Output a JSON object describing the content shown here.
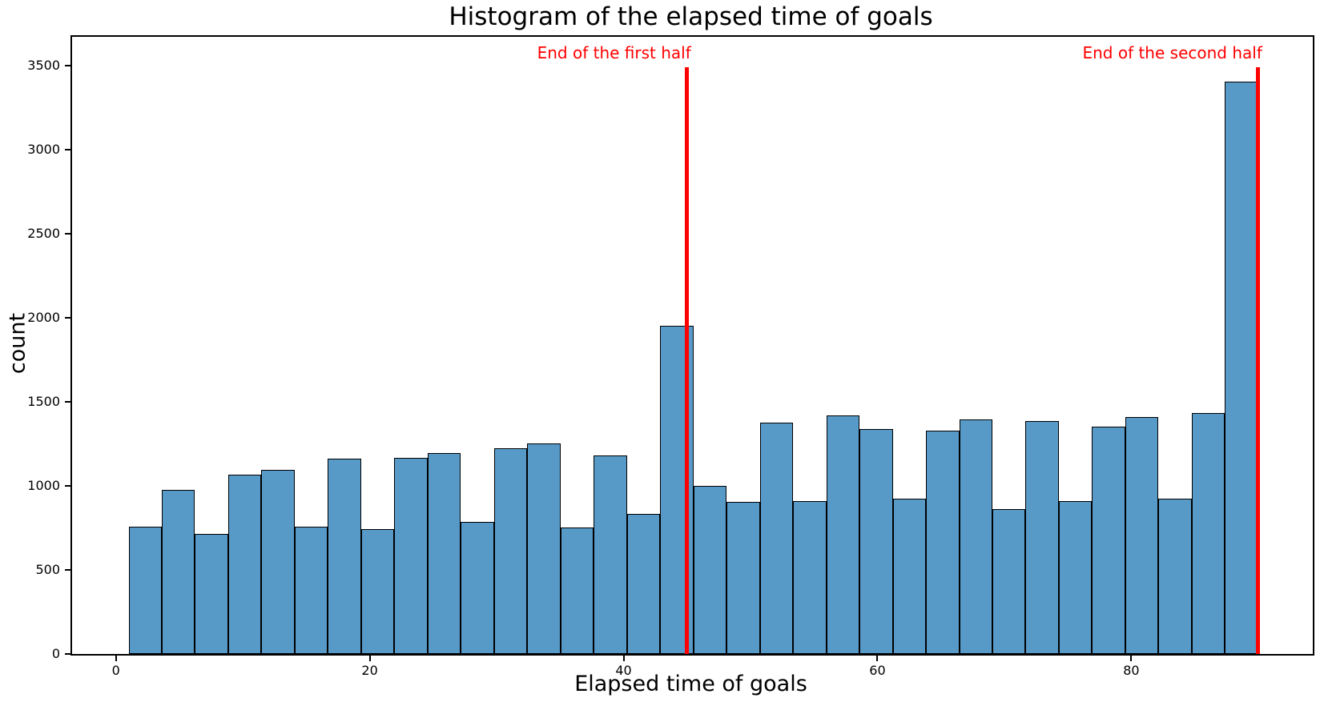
{
  "chart_data": {
    "type": "bar",
    "subtype": "histogram",
    "title": "Histogram of the elapsed time of goals",
    "xlabel": "Elapsed time of goals",
    "ylabel": "count",
    "bins": {
      "start": 1,
      "width": 2.6176,
      "count": 34
    },
    "values": [
      755,
      975,
      715,
      1065,
      1095,
      755,
      1160,
      745,
      1165,
      1195,
      785,
      1225,
      1250,
      750,
      1180,
      835,
      1950,
      1000,
      905,
      1375,
      910,
      1420,
      1340,
      925,
      1330,
      1395,
      860,
      1385,
      910,
      1350,
      1410,
      925,
      1435,
      3405
    ],
    "xlim": [
      -3.45,
      94.3
    ],
    "ylim": [
      0,
      3671
    ],
    "x_ticks": [
      0,
      20,
      40,
      60,
      80
    ],
    "y_ticks": [
      0,
      500,
      1000,
      1500,
      2000,
      2500,
      3000,
      3500
    ],
    "grid": false,
    "legend": null,
    "vlines": [
      {
        "x": 45,
        "label": "End of the first half",
        "color": "#ff0000"
      },
      {
        "x": 90,
        "label": "End of the second half",
        "color": "#ff0000"
      }
    ],
    "style": {
      "bar_fill": "#5799c7",
      "bar_edge": "#000000",
      "vline_width": 5,
      "text_color": "#000000"
    }
  }
}
